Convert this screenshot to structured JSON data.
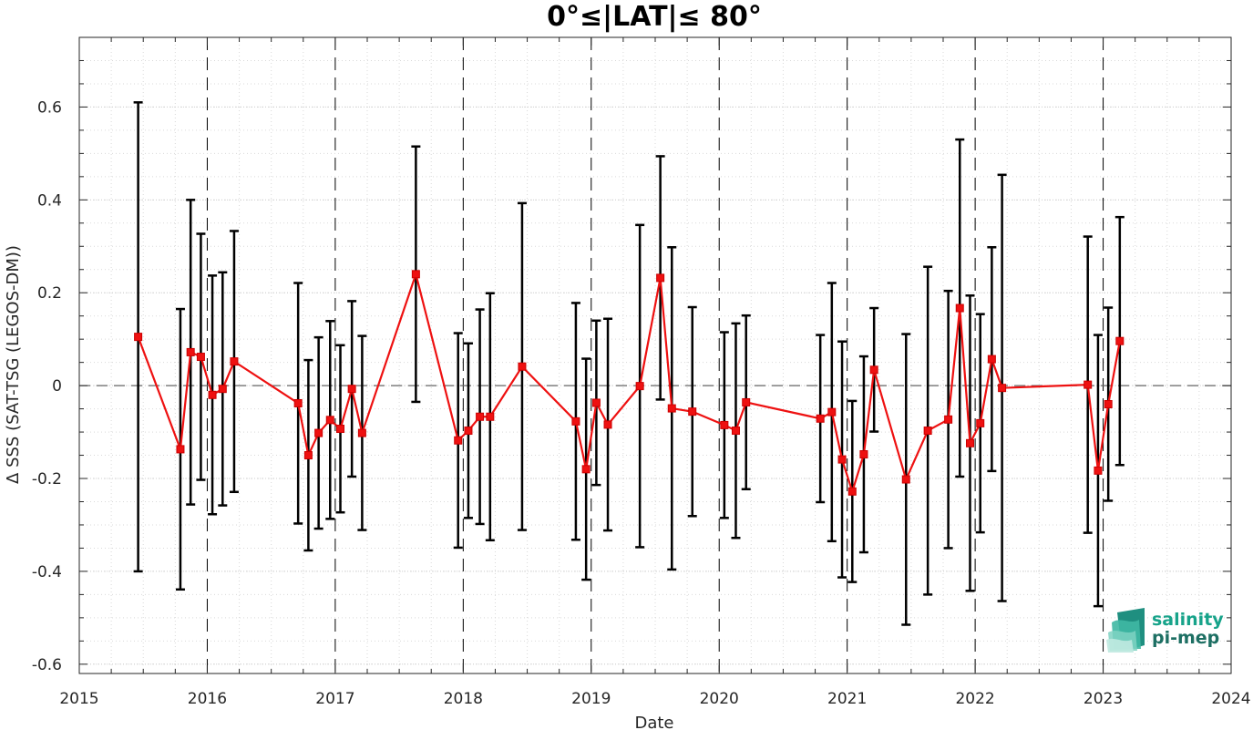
{
  "chart_data": {
    "type": "line",
    "title": "0°≤|LAT|≤ 80°",
    "xlabel": "Date",
    "ylabel": "Δ SSS (SAT-TSG (LEGOS-DM))",
    "xlim": [
      2015,
      2024
    ],
    "ylim": [
      -0.62,
      0.75
    ],
    "x_ticks": [
      "2015",
      "2016",
      "2017",
      "2018",
      "2019",
      "2020",
      "2021",
      "2022",
      "2023",
      "2024"
    ],
    "y_ticks": [
      "0.6",
      "0.4",
      "0.2",
      "0",
      "-0.2",
      "-0.4",
      "-0.6"
    ],
    "y_tick_values": [
      0.6,
      0.4,
      0.2,
      0,
      -0.2,
      -0.4,
      -0.6
    ],
    "grid": "minor-dotted",
    "reference_line": 0,
    "line_color": "#ee1111",
    "errorbar_color": "#000000",
    "series": [
      {
        "x": [
          2015.46,
          2015.79,
          2015.87,
          2015.95,
          2016.04,
          2016.12,
          2016.21,
          2016.71,
          2016.79,
          2016.87,
          2016.96,
          2017.04,
          2017.13,
          2017.21,
          2017.63,
          2017.96,
          2018.04,
          2018.13,
          2018.21,
          2018.46,
          2018.88,
          2018.96,
          2019.04,
          2019.13,
          2019.38,
          2019.54,
          2019.63,
          2019.79,
          2020.04,
          2020.13,
          2020.21,
          2020.79,
          2020.88,
          2020.96,
          2021.04,
          2021.13,
          2021.21,
          2021.46,
          2021.63,
          2021.79,
          2021.88,
          2021.96,
          2022.04,
          2022.13,
          2022.21,
          2022.88,
          2022.96,
          2023.04,
          2023.13
        ],
        "values": [
          0.105,
          -0.137,
          0.072,
          0.062,
          -0.02,
          -0.007,
          0.052,
          -0.038,
          -0.15,
          -0.102,
          -0.074,
          -0.093,
          -0.007,
          -0.102,
          0.24,
          -0.118,
          -0.097,
          -0.067,
          -0.067,
          0.041,
          -0.077,
          -0.18,
          -0.037,
          -0.084,
          -0.001,
          0.232,
          -0.049,
          -0.056,
          -0.085,
          -0.097,
          -0.036,
          -0.071,
          -0.057,
          -0.159,
          -0.228,
          -0.148,
          0.034,
          -0.202,
          -0.097,
          -0.073,
          0.167,
          -0.124,
          -0.081,
          0.057,
          -0.005,
          0.002,
          -0.183,
          -0.04,
          0.096
        ],
        "error": [
          0.505,
          0.302,
          0.328,
          0.265,
          0.257,
          0.251,
          0.281,
          0.259,
          0.205,
          0.206,
          0.213,
          0.18,
          0.189,
          0.209,
          0.275,
          0.231,
          0.188,
          0.231,
          0.266,
          0.352,
          0.255,
          0.238,
          0.177,
          0.228,
          0.347,
          0.262,
          0.347,
          0.225,
          0.2,
          0.231,
          0.187,
          0.18,
          0.278,
          0.254,
          0.195,
          0.211,
          0.133,
          0.313,
          0.353,
          0.277,
          0.363,
          0.318,
          0.235,
          0.241,
          0.459,
          0.319,
          0.292,
          0.208,
          0.267
        ]
      }
    ]
  },
  "logo": {
    "line1": "salinity",
    "line2": "pi-mep",
    "color": "#17a38a"
  }
}
